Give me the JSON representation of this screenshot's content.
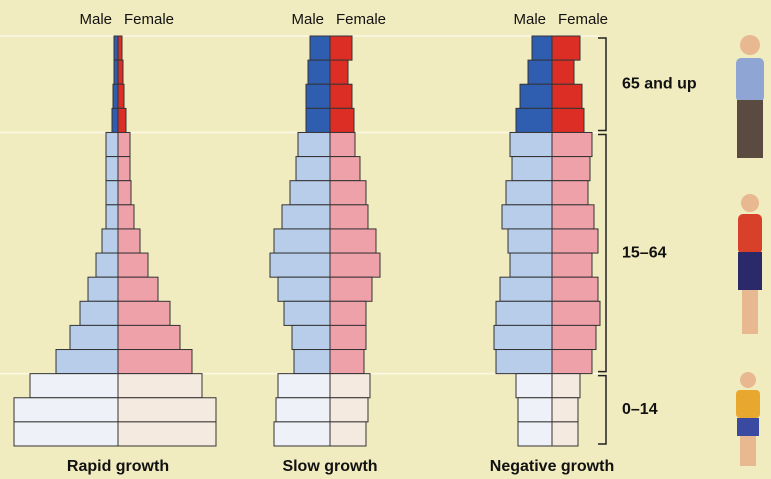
{
  "chart_data": [
    {
      "type": "pyramid",
      "title": "Rapid growth",
      "series": [
        {
          "name": "Male",
          "colors": [
            "#2f5db0",
            "#b7cde9",
            "#eef2f8"
          ],
          "values": [
            4,
            4,
            5,
            6,
            12,
            12,
            12,
            12,
            16,
            22,
            30,
            38,
            48,
            62,
            88,
            104,
            104
          ]
        },
        {
          "name": "Female",
          "colors": [
            "#dd2e26",
            "#eea1a8",
            "#f5eadf"
          ],
          "values": [
            4,
            5,
            6,
            8,
            12,
            12,
            13,
            16,
            22,
            30,
            40,
            52,
            62,
            74,
            84,
            98,
            98
          ]
        }
      ]
    },
    {
      "type": "pyramid",
      "title": "Slow growth",
      "series": [
        {
          "name": "Male",
          "colors": [
            "#2f5db0",
            "#b7cde9",
            "#eef2f8"
          ],
          "values": [
            20,
            22,
            24,
            24,
            32,
            34,
            40,
            48,
            56,
            60,
            52,
            46,
            38,
            36,
            52,
            54,
            56
          ]
        },
        {
          "name": "Female",
          "colors": [
            "#dd2e26",
            "#eea1a8",
            "#f5eadf"
          ],
          "values": [
            22,
            18,
            22,
            24,
            25,
            30,
            36,
            38,
            46,
            50,
            42,
            36,
            36,
            34,
            40,
            38,
            36
          ]
        }
      ]
    },
    {
      "type": "pyramid",
      "title": "Negative growth",
      "series": [
        {
          "name": "Male",
          "colors": [
            "#2f5db0",
            "#b7cde9",
            "#eef2f8"
          ],
          "values": [
            20,
            24,
            32,
            36,
            42,
            40,
            46,
            50,
            44,
            42,
            52,
            56,
            58,
            56,
            36,
            34,
            34
          ]
        },
        {
          "name": "Female",
          "colors": [
            "#dd2e26",
            "#eea1a8",
            "#f5eadf"
          ],
          "values": [
            28,
            22,
            30,
            32,
            40,
            38,
            36,
            42,
            46,
            40,
            46,
            48,
            44,
            40,
            28,
            26,
            26
          ]
        }
      ]
    }
  ],
  "age_groups": [
    {
      "label": "65 and up",
      "rows": 4
    },
    {
      "label": "15–64",
      "rows": 10
    },
    {
      "label": "0–14",
      "rows": 3
    }
  ]
}
